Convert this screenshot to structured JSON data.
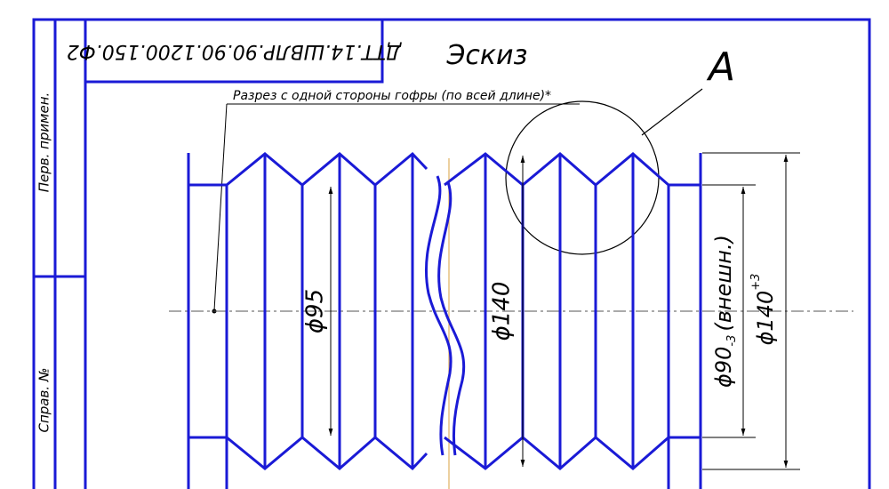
{
  "colors": {
    "drawing": "#1a1ad6",
    "thin": "#000000",
    "axis": "#555555",
    "center_line": "#e0b060",
    "background": "#ffffff"
  },
  "stamp_code": "ДТТ.14.ШВЛР.90.90.1200.150.Ф2",
  "sheet_title": "Эскиз",
  "detail_label": "А",
  "section_note": "Разрез с одной стороны гофры (по всей длине)*",
  "side_labels": {
    "perv_primen": "Перв. примен.",
    "sprav_no": "Справ. №"
  },
  "dimensions": {
    "d95": "ϕ95",
    "d140_mid": "ϕ140",
    "d90_main": "ϕ90",
    "d90_sub": "-3",
    "d90_note": "(внешн.)",
    "d140_main": "ϕ140",
    "d140_sup": "+3"
  }
}
